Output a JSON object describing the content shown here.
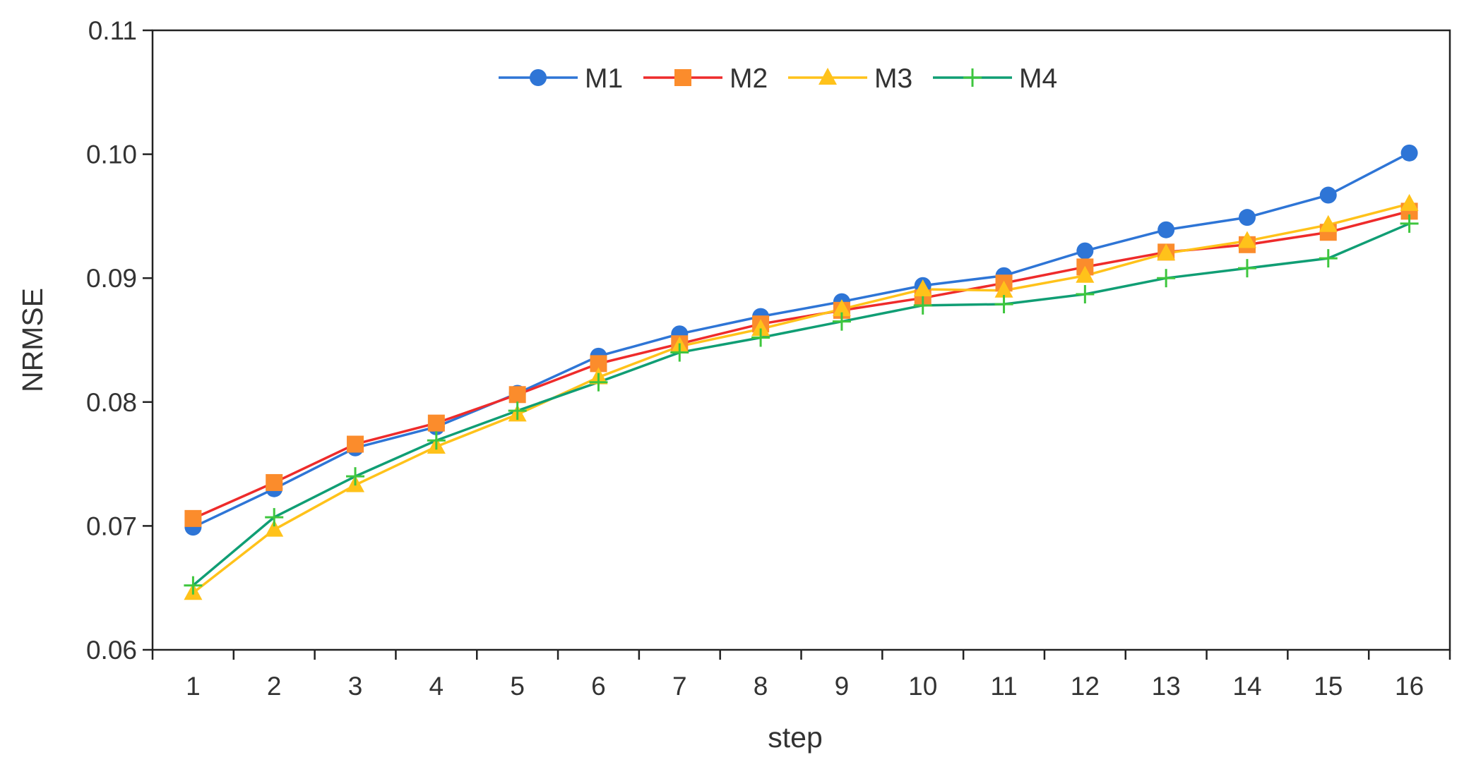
{
  "chart_data": {
    "type": "line",
    "title": "",
    "xlabel": "step",
    "ylabel": "NRMSE",
    "x": [
      1,
      2,
      3,
      4,
      5,
      6,
      7,
      8,
      9,
      10,
      11,
      12,
      13,
      14,
      15,
      16
    ],
    "x_tick_labels": [
      "1",
      "2",
      "3",
      "4",
      "5",
      "6",
      "7",
      "8",
      "9",
      "10",
      "11",
      "12",
      "13",
      "14",
      "15",
      "16"
    ],
    "xlim": [
      0.5,
      16.5
    ],
    "ylim": [
      0.06,
      0.11
    ],
    "y_ticks": [
      0.06,
      0.07,
      0.08,
      0.09,
      0.1,
      0.11
    ],
    "y_tick_labels": [
      "0.06",
      "0.07",
      "0.08",
      "0.09",
      "0.10",
      "0.11"
    ],
    "grid": false,
    "legend_position": "top-center",
    "series": [
      {
        "name": "M1",
        "color": "#2e75d6",
        "marker": "circle",
        "values": [
          0.0699,
          0.073,
          0.0763,
          0.078,
          0.0807,
          0.0837,
          0.0855,
          0.0869,
          0.0881,
          0.0894,
          0.0902,
          0.0922,
          0.0939,
          0.0949,
          0.0967,
          0.1001
        ]
      },
      {
        "name": "M2",
        "color": "#ee2b2b",
        "marker": "square",
        "values": [
          0.0706,
          0.0735,
          0.0766,
          0.0783,
          0.0806,
          0.0831,
          0.0847,
          0.0863,
          0.0874,
          0.0884,
          0.0896,
          0.0909,
          0.0921,
          0.0927,
          0.0937,
          0.0954
        ]
      },
      {
        "name": "M3",
        "color": "#ffc21a",
        "marker": "triangle",
        "values": [
          0.0646,
          0.0697,
          0.0733,
          0.0764,
          0.079,
          0.082,
          0.0845,
          0.0859,
          0.0875,
          0.0891,
          0.089,
          0.0902,
          0.092,
          0.093,
          0.0943,
          0.096
        ]
      },
      {
        "name": "M4",
        "color": "#109e74",
        "marker": "plus",
        "marker_color": "#3ec63e",
        "values": [
          0.0652,
          0.0707,
          0.074,
          0.0769,
          0.0793,
          0.0816,
          0.084,
          0.0852,
          0.0865,
          0.0878,
          0.0879,
          0.0887,
          0.09,
          0.0908,
          0.0916,
          0.0944
        ]
      }
    ]
  }
}
